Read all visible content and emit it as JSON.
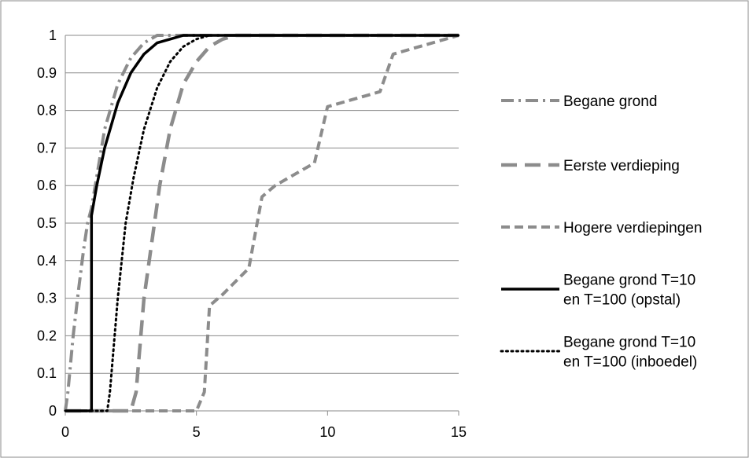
{
  "chart_data": {
    "type": "line",
    "title": "",
    "xlabel": "",
    "ylabel": "",
    "xlim": [
      0,
      15
    ],
    "ylim": [
      0,
      1
    ],
    "x_ticks": [
      "0",
      "5",
      "10",
      "15"
    ],
    "y_ticks": [
      "0",
      "0.1",
      "0.2",
      "0.3",
      "0.4",
      "0.5",
      "0.6",
      "0.7",
      "0.8",
      "0.9",
      "1"
    ],
    "grid": "horizontal",
    "legend_position": "right",
    "series": [
      {
        "name": "Begane grond",
        "style": "dash-dot",
        "color": "#8c8c8c",
        "points": [
          [
            0,
            0
          ],
          [
            0.1,
            0.05
          ],
          [
            0.3,
            0.2
          ],
          [
            0.5,
            0.32
          ],
          [
            0.7,
            0.43
          ],
          [
            0.85,
            0.5
          ],
          [
            1.0,
            0.54
          ],
          [
            1.5,
            0.75
          ],
          [
            2.0,
            0.87
          ],
          [
            2.5,
            0.94
          ],
          [
            3.0,
            0.98
          ],
          [
            3.5,
            1.0
          ],
          [
            15,
            1.0
          ]
        ]
      },
      {
        "name": "Eerste verdieping",
        "style": "dash",
        "color": "#8c8c8c",
        "points": [
          [
            0,
            0
          ],
          [
            2.5,
            0
          ],
          [
            2.7,
            0.05
          ],
          [
            3.0,
            0.3
          ],
          [
            3.3,
            0.45
          ],
          [
            3.6,
            0.6
          ],
          [
            4.0,
            0.75
          ],
          [
            4.5,
            0.87
          ],
          [
            5.0,
            0.93
          ],
          [
            5.5,
            0.97
          ],
          [
            6.0,
            0.99
          ],
          [
            6.5,
            1.0
          ],
          [
            15,
            1.0
          ]
        ]
      },
      {
        "name": "Hogere verdiepingen",
        "style": "short-dash",
        "color": "#8c8c8c",
        "points": [
          [
            0,
            0
          ],
          [
            5.0,
            0
          ],
          [
            5.3,
            0.05
          ],
          [
            5.5,
            0.28
          ],
          [
            6.0,
            0.31
          ],
          [
            7.0,
            0.38
          ],
          [
            7.5,
            0.57
          ],
          [
            8.0,
            0.6
          ],
          [
            9.5,
            0.66
          ],
          [
            10.0,
            0.81
          ],
          [
            12.0,
            0.85
          ],
          [
            12.5,
            0.95
          ],
          [
            15,
            1.0
          ]
        ]
      },
      {
        "name": "Begane grond T=10 en T=100 (opstal)",
        "style": "solid",
        "color": "#000000",
        "points": [
          [
            0,
            0
          ],
          [
            1.0,
            0
          ],
          [
            1.0,
            0.52
          ],
          [
            1.2,
            0.6
          ],
          [
            1.5,
            0.7
          ],
          [
            2.0,
            0.82
          ],
          [
            2.5,
            0.9
          ],
          [
            3.0,
            0.95
          ],
          [
            3.5,
            0.98
          ],
          [
            4.0,
            0.99
          ],
          [
            4.5,
            1.0
          ],
          [
            15,
            1.0
          ]
        ]
      },
      {
        "name": "Begane grond T=10 en T=100 (inboedel)",
        "style": "dotted",
        "color": "#000000",
        "points": [
          [
            0,
            0
          ],
          [
            1.6,
            0
          ],
          [
            1.7,
            0.05
          ],
          [
            2.0,
            0.3
          ],
          [
            2.3,
            0.5
          ],
          [
            2.6,
            0.62
          ],
          [
            3.0,
            0.75
          ],
          [
            3.5,
            0.86
          ],
          [
            4.0,
            0.93
          ],
          [
            4.5,
            0.97
          ],
          [
            5.0,
            0.99
          ],
          [
            5.5,
            1.0
          ],
          [
            15,
            1.0
          ]
        ]
      }
    ],
    "legend": [
      {
        "lines": [
          "Begane grond"
        ]
      },
      {
        "lines": [
          "Eerste verdieping"
        ]
      },
      {
        "lines": [
          "Hogere verdiepingen"
        ]
      },
      {
        "lines": [
          "Begane grond T=10",
          "en T=100 (opstal)"
        ]
      },
      {
        "lines": [
          "Begane grond T=10",
          "en T=100 (inboedel)"
        ]
      }
    ]
  }
}
